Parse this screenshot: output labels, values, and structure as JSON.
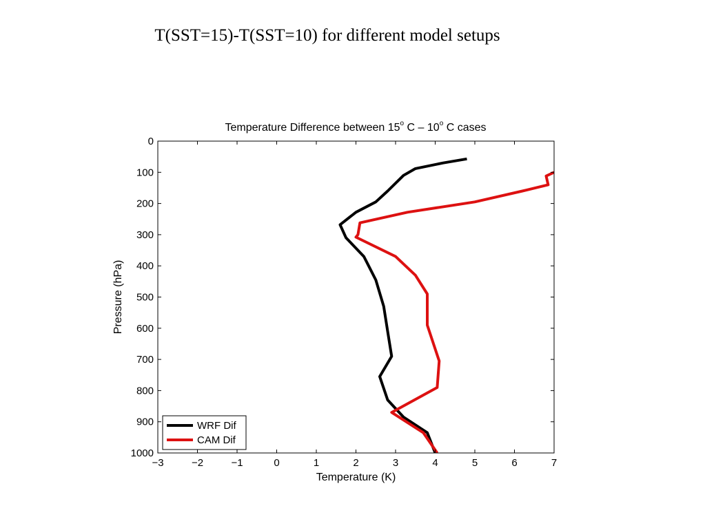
{
  "slide": {
    "title": "T(SST=15)-T(SST=10) for different model setups"
  },
  "chart_data": {
    "type": "line",
    "title": "Temperature Difference between 15° C – 10° C cases",
    "title_parts": [
      "Temperature Difference between 15",
      "o",
      " C – 10",
      "o",
      " C cases"
    ],
    "xlabel": "Temperature (K)",
    "ylabel": "Pressure (hPa)",
    "xlim": [
      -3,
      7
    ],
    "ylim": [
      0,
      1000
    ],
    "y_reversed": true,
    "xticks": [
      -3,
      -2,
      -1,
      0,
      1,
      2,
      3,
      4,
      5,
      6,
      7
    ],
    "xtick_labels": [
      "−3",
      "−2",
      "−1",
      "0",
      "1",
      "2",
      "3",
      "4",
      "5",
      "6",
      "7"
    ],
    "yticks": [
      0,
      100,
      200,
      300,
      400,
      500,
      600,
      700,
      800,
      900,
      1000
    ],
    "ytick_labels": [
      "0",
      "100",
      "200",
      "300",
      "400",
      "500",
      "600",
      "700",
      "800",
      "900",
      "1000"
    ],
    "grid": false,
    "legend_position": "bottom-left",
    "series": [
      {
        "name": "WRF Dif",
        "color": "#000000",
        "points": [
          {
            "x": 4.8,
            "y": 57
          },
          {
            "x": 4.2,
            "y": 70
          },
          {
            "x": 3.5,
            "y": 88
          },
          {
            "x": 3.2,
            "y": 110
          },
          {
            "x": 2.8,
            "y": 160
          },
          {
            "x": 2.5,
            "y": 195
          },
          {
            "x": 2.0,
            "y": 228
          },
          {
            "x": 1.6,
            "y": 268
          },
          {
            "x": 1.75,
            "y": 310
          },
          {
            "x": 2.2,
            "y": 370
          },
          {
            "x": 2.5,
            "y": 445
          },
          {
            "x": 2.7,
            "y": 530
          },
          {
            "x": 2.8,
            "y": 610
          },
          {
            "x": 2.9,
            "y": 690
          },
          {
            "x": 2.6,
            "y": 755
          },
          {
            "x": 2.8,
            "y": 830
          },
          {
            "x": 3.2,
            "y": 885
          },
          {
            "x": 3.8,
            "y": 935
          },
          {
            "x": 4.0,
            "y": 1000
          }
        ]
      },
      {
        "name": "CAM Dif",
        "color": "#dd1111",
        "points": [
          {
            "x": 7.0,
            "y": 100
          },
          {
            "x": 6.8,
            "y": 112
          },
          {
            "x": 6.85,
            "y": 140
          },
          {
            "x": 6.2,
            "y": 160
          },
          {
            "x": 5.0,
            "y": 195
          },
          {
            "x": 3.3,
            "y": 228
          },
          {
            "x": 2.1,
            "y": 262
          },
          {
            "x": 2.05,
            "y": 300
          },
          {
            "x": 2.0,
            "y": 308
          },
          {
            "x": 3.0,
            "y": 370
          },
          {
            "x": 3.5,
            "y": 430
          },
          {
            "x": 3.8,
            "y": 490
          },
          {
            "x": 3.8,
            "y": 590
          },
          {
            "x": 4.1,
            "y": 705
          },
          {
            "x": 4.05,
            "y": 790
          },
          {
            "x": 2.9,
            "y": 870
          },
          {
            "x": 3.7,
            "y": 935
          },
          {
            "x": 4.05,
            "y": 1000
          }
        ]
      }
    ]
  }
}
